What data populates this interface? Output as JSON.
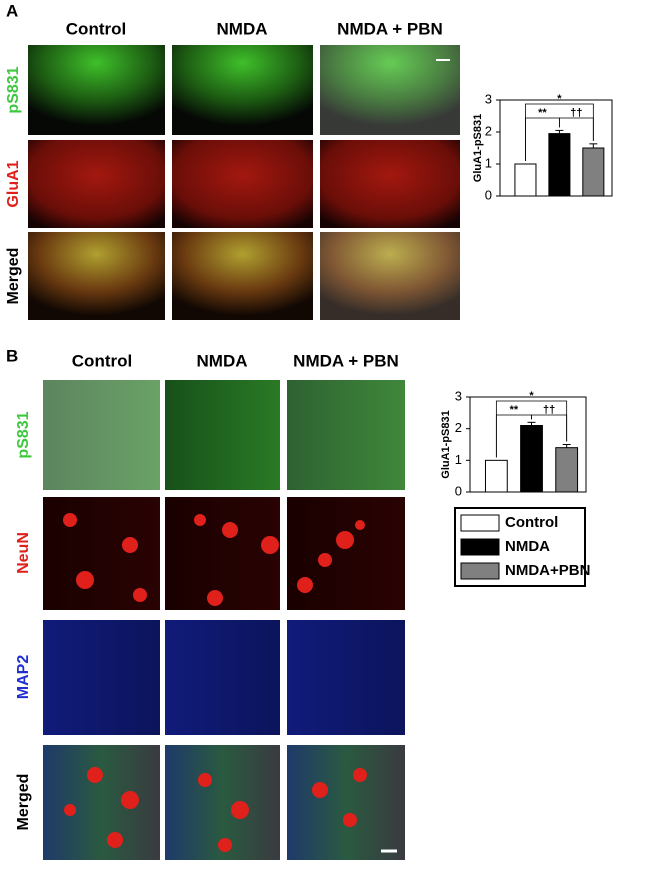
{
  "panels": {
    "a": {
      "letter": "A",
      "columns": [
        "Control",
        "NMDA",
        "NMDA + PBN"
      ],
      "rows": [
        "pS831",
        "GluA1",
        "Merged"
      ]
    },
    "b": {
      "letter": "B",
      "columns": [
        "Control",
        "NMDA",
        "NMDA + PBN"
      ],
      "rows": [
        "pS831",
        "NeuN",
        "MAP2",
        "Merged"
      ]
    }
  },
  "chart_data": [
    {
      "type": "bar",
      "ylabel": "GluA1-pS831",
      "values": [
        1.0,
        1.95,
        1.5
      ],
      "errors": [
        0,
        0.1,
        0.13
      ],
      "colors": [
        "#ffffff",
        "#000000",
        "#808080"
      ],
      "ylim": [
        0,
        3
      ],
      "yticks": [
        0,
        1,
        2,
        3
      ],
      "annotations": [
        "**",
        "*",
        "††"
      ]
    },
    {
      "type": "bar",
      "ylabel": "GluA1-pS831",
      "categories": [
        "Control",
        "NMDA",
        "NMDA+PBN"
      ],
      "values": [
        1.0,
        2.1,
        1.4
      ],
      "errors": [
        0,
        0.1,
        0.1
      ],
      "colors": [
        "#ffffff",
        "#000000",
        "#808080"
      ],
      "ylim": [
        0,
        3
      ],
      "yticks": [
        0,
        1,
        2,
        3
      ],
      "annotations": [
        "**",
        "*",
        "††"
      ],
      "legend": true
    }
  ]
}
